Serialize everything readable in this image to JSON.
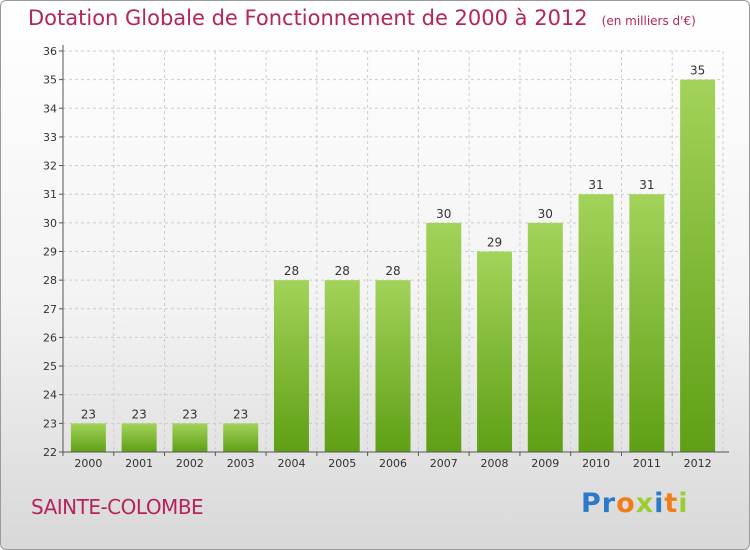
{
  "title": "Dotation Globale de Fonctionnement de 2000 à 2012",
  "subtitle": "(en milliers d'€)",
  "commune": "SAINTE-COLOMBE",
  "logo": {
    "letters": [
      {
        "char": "P",
        "color": "#2b7ac9"
      },
      {
        "char": "r",
        "color": "#2b7ac9"
      },
      {
        "char": "o",
        "color": "#f07d19"
      },
      {
        "char": "x",
        "color": "#9acd32"
      },
      {
        "char": "i",
        "color": "#2b7ac9"
      },
      {
        "char": "t",
        "color": "#f07d19"
      },
      {
        "char": "i",
        "color": "#9acd32"
      }
    ]
  },
  "colors": {
    "title": "#b5245c",
    "bar_top": "#a3d35a",
    "bar_bottom": "#5f9f15",
    "grid": "#cccccc",
    "axis": "#555555"
  },
  "chart_data": {
    "type": "bar",
    "categories": [
      "2000",
      "2001",
      "2002",
      "2003",
      "2004",
      "2005",
      "2006",
      "2007",
      "2008",
      "2009",
      "2010",
      "2011",
      "2012"
    ],
    "values": [
      23,
      23,
      23,
      23,
      28,
      28,
      28,
      30,
      29,
      30,
      31,
      31,
      35
    ],
    "ylim": [
      22,
      36
    ],
    "yticks": [
      22,
      23,
      24,
      25,
      26,
      27,
      28,
      29,
      30,
      31,
      32,
      33,
      34,
      35,
      36
    ],
    "grid": true,
    "data_labels": true
  }
}
